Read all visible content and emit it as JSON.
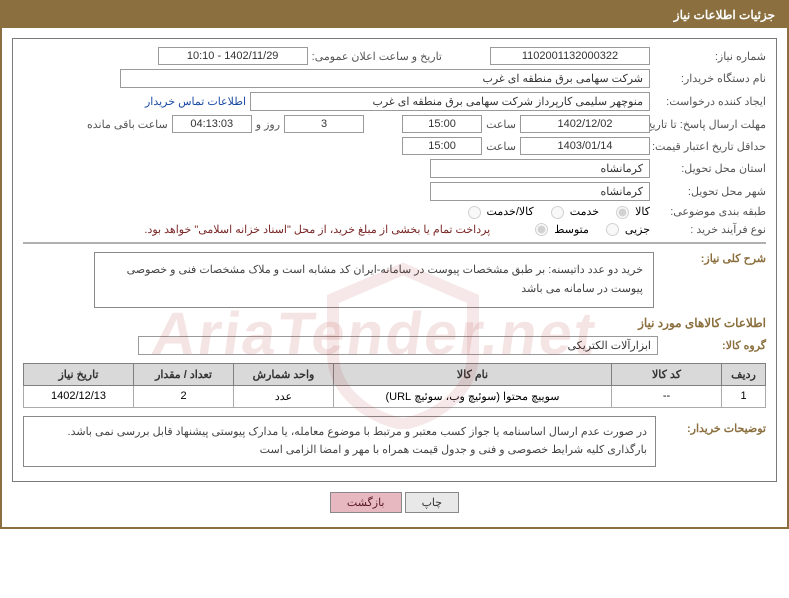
{
  "brand_color": "#8b6f3e",
  "header": {
    "title": "جزئیات اطلاعات نیاز"
  },
  "labels": {
    "need_no": "شماره نیاز:",
    "announce_dt": "تاریخ و ساعت اعلان عمومی:",
    "buyer_org": "نام دستگاه خریدار:",
    "requester": "ایجاد کننده درخواست:",
    "contact_link": "اطلاعات تماس خریدار",
    "reply_deadline": "مهلت ارسال پاسخ: تا تاریخ:",
    "hour": "ساعت",
    "day_and": "روز و",
    "remaining": "ساعت باقی مانده",
    "price_valid": "حداقل تاریخ اعتبار قیمت: تا تاریخ:",
    "delivery_prov": "استان محل تحویل:",
    "delivery_city": "شهر محل تحویل:",
    "subject_class": "طبقه بندی موضوعی:",
    "process_type": "نوع فرآیند خرید :",
    "pay_note": "پرداخت تمام یا بخشی از مبلغ خرید، از محل \"اسناد خزانه اسلامی\" خواهد بود.",
    "summary": "شرح کلی نیاز:",
    "items_title": "اطلاعات کالاهای مورد نیاز",
    "goods_group": "گروه کالا:",
    "buyer_notes": "توضیحات خریدار:"
  },
  "values": {
    "need_no": "1102001132000322",
    "announce_dt": "1402/11/29 - 10:10",
    "buyer_org": "شرکت سهامی برق منطقه ای غرب",
    "requester": "منوچهر سلیمی کارپرداز شرکت سهامی برق منطقه ای غرب",
    "reply_date": "1402/12/02",
    "reply_time": "15:00",
    "remain_days": "3",
    "remain_time": "04:13:03",
    "price_date": "1403/01/14",
    "price_time": "15:00",
    "province": "کرمانشاه",
    "city": "کرمانشاه",
    "goods_group": "ابزارآلات الکتریکی",
    "summary_text": "خرید دو عدد داتیسنه: بر طبق مشخصات پیوست در سامانه-ایران کد مشابه است و ملاک مشخصات فنی و خصوصی پیوست در سامانه می باشد",
    "buyer_notes_text": "در صورت عدم ارسال اساسنامه یا جواز کسب معتبر و مرتبط با موضوع معامله،  یا مدارک پیوستی پیشنهاد قابل بررسی نمی باشد.\nبارگذاری کلیه شرایط خصوصی و فنی و جدول قیمت همراه با مهر و امضا الزامی است"
  },
  "radios": {
    "class": {
      "options": [
        "کالا",
        "خدمت",
        "کالا/خدمت"
      ],
      "selected": 0
    },
    "proc": {
      "options": [
        "جزیی",
        "متوسط"
      ],
      "selected": 1
    }
  },
  "table": {
    "columns": [
      "ردیف",
      "کد کالا",
      "نام کالا",
      "واحد شمارش",
      "تعداد / مقدار",
      "تاریخ نیاز"
    ],
    "col_widths": [
      "44px",
      "110px",
      "auto",
      "100px",
      "100px",
      "110px"
    ],
    "rows": [
      [
        "1",
        "--",
        "سوییچ محتوا (سوئیچ وب، سوئیچ URL)",
        "عدد",
        "2",
        "1402/12/13"
      ]
    ]
  },
  "buttons": {
    "print": "چاپ",
    "back": "بازگشت"
  }
}
